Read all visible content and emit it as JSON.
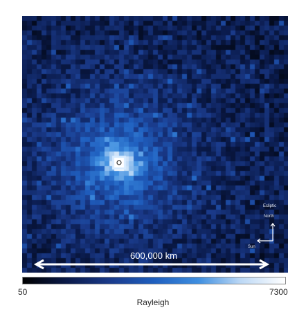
{
  "scale_bar": {
    "label": "600,000 km"
  },
  "compass": {
    "ecliptic_label": "Ecliptic",
    "north_label": "North",
    "sun_label": "Sun"
  },
  "colorbar": {
    "min_label": "50",
    "max_label": "7300",
    "unit_label": "Rayleigh",
    "colors": [
      "#000000",
      "#0a1a4a",
      "#1a3a8a",
      "#1f5fbf",
      "#3f8fe0",
      "#bcd8f5",
      "#ffffff"
    ]
  },
  "colors": {
    "background": "#000a22",
    "glow": "#2a70d8",
    "core": "#ffffff"
  }
}
